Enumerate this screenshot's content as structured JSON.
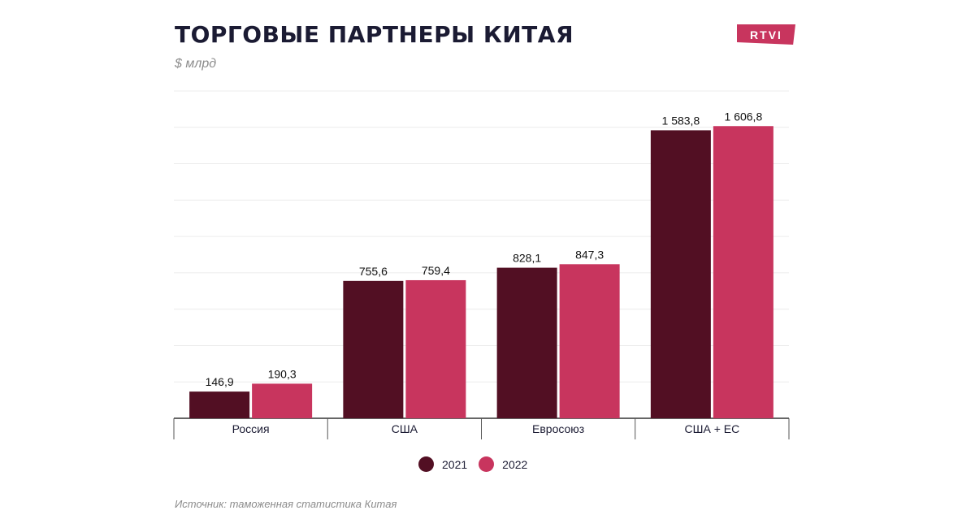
{
  "header": {
    "title": "ТОРГОВЫЕ ПАРТНЕРЫ КИТАЯ",
    "subtitle": "$ млрд",
    "logo_text": "RTVI",
    "logo_color": "#c8355e"
  },
  "footer": {
    "source": "Источник: таможенная статистика Китая"
  },
  "chart_data": {
    "type": "bar",
    "categories": [
      "Россия",
      "США",
      "Евросоюз",
      "США + ЕС"
    ],
    "series": [
      {
        "name": "2021",
        "color": "#520f23",
        "values": [
          146.9,
          755.6,
          828.1,
          1583.8
        ],
        "labels": [
          "146,9",
          "755,6",
          "828,1",
          "1 583,8"
        ]
      },
      {
        "name": "2022",
        "color": "#c8355e",
        "values": [
          190.3,
          759.4,
          847.3,
          1606.8
        ],
        "labels": [
          "190,3",
          "759,4",
          "847,3",
          "1 606,8"
        ]
      }
    ],
    "ylim": [
      0,
      1800
    ],
    "grid": true,
    "legend": "bottom-center"
  }
}
